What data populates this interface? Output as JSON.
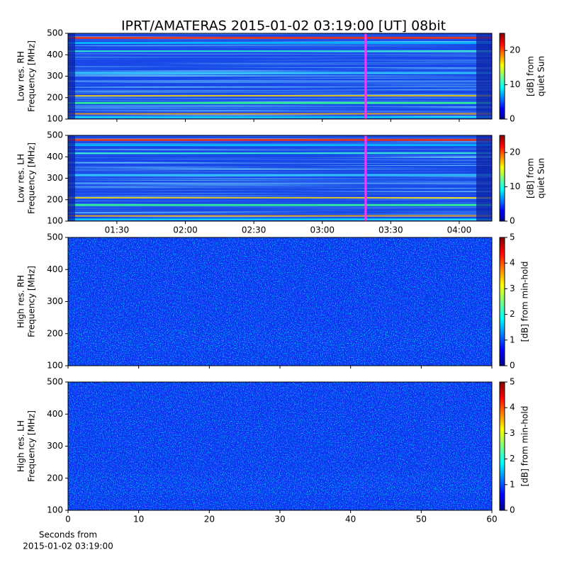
{
  "chart_data": [
    {
      "type": "heatmap",
      "title": "IPRT/AMATERAS 2015-01-02 03:19:00 [UT]   08bit",
      "ylabel": [
        "Low res. RH",
        "Frequency [MHz]"
      ],
      "ylim": [
        100,
        500
      ],
      "yticks": [
        100,
        200,
        300,
        400,
        500
      ],
      "xlim": [
        68.6,
        254.3
      ],
      "cursor": {
        "x": 199,
        "color": "#ff33ff"
      },
      "colorbar": {
        "label": [
          "[dB] from",
          "quiet Sun"
        ],
        "lim": [
          0,
          25
        ],
        "ticks": [
          0,
          10,
          20
        ]
      }
    },
    {
      "type": "heatmap",
      "ylabel": [
        "Low res. LH",
        "Frequency [MHz]"
      ],
      "ylim": [
        100,
        500
      ],
      "yticks": [
        100,
        200,
        300,
        400,
        500
      ],
      "xlim": [
        68.6,
        254.3
      ],
      "cursor": {
        "x": 199,
        "color": "#ff33ff"
      },
      "xticks": [
        {
          "value": 90,
          "label": "01:30"
        },
        {
          "value": 120,
          "label": "02:00"
        },
        {
          "value": 150,
          "label": "02:30"
        },
        {
          "value": 180,
          "label": "03:00"
        },
        {
          "value": 210,
          "label": "03:30"
        },
        {
          "value": 240,
          "label": "04:00"
        }
      ],
      "colorbar": {
        "label": [
          "[dB] from",
          "quiet Sun"
        ],
        "lim": [
          0,
          25
        ],
        "ticks": [
          0,
          10,
          20
        ]
      }
    },
    {
      "type": "heatmap",
      "ylabel": [
        "High res. RH",
        "Frequency [MHz]"
      ],
      "ylim": [
        100,
        500
      ],
      "yticks": [
        100,
        200,
        300,
        400,
        500
      ],
      "xlim": [
        0,
        60
      ],
      "colorbar": {
        "label": [
          "[dB] from min-hold"
        ],
        "lim": [
          0,
          5
        ],
        "ticks": [
          0,
          1,
          2,
          3,
          4,
          5
        ]
      }
    },
    {
      "type": "heatmap",
      "ylabel": [
        "High res. LH",
        "Frequency [MHz]"
      ],
      "ylim": [
        100,
        500
      ],
      "yticks": [
        100,
        200,
        300,
        400,
        500
      ],
      "xlim": [
        0,
        60
      ],
      "xticks": [
        0,
        10,
        20,
        30,
        40,
        50,
        60
      ],
      "xlabel": [
        "Seconds from",
        "2015-01-02 03:19:00"
      ],
      "colorbar": {
        "label": [
          "[dB] from min-hold"
        ],
        "lim": [
          0,
          5
        ],
        "ticks": [
          0,
          1,
          2,
          3,
          4,
          5
        ]
      }
    }
  ]
}
